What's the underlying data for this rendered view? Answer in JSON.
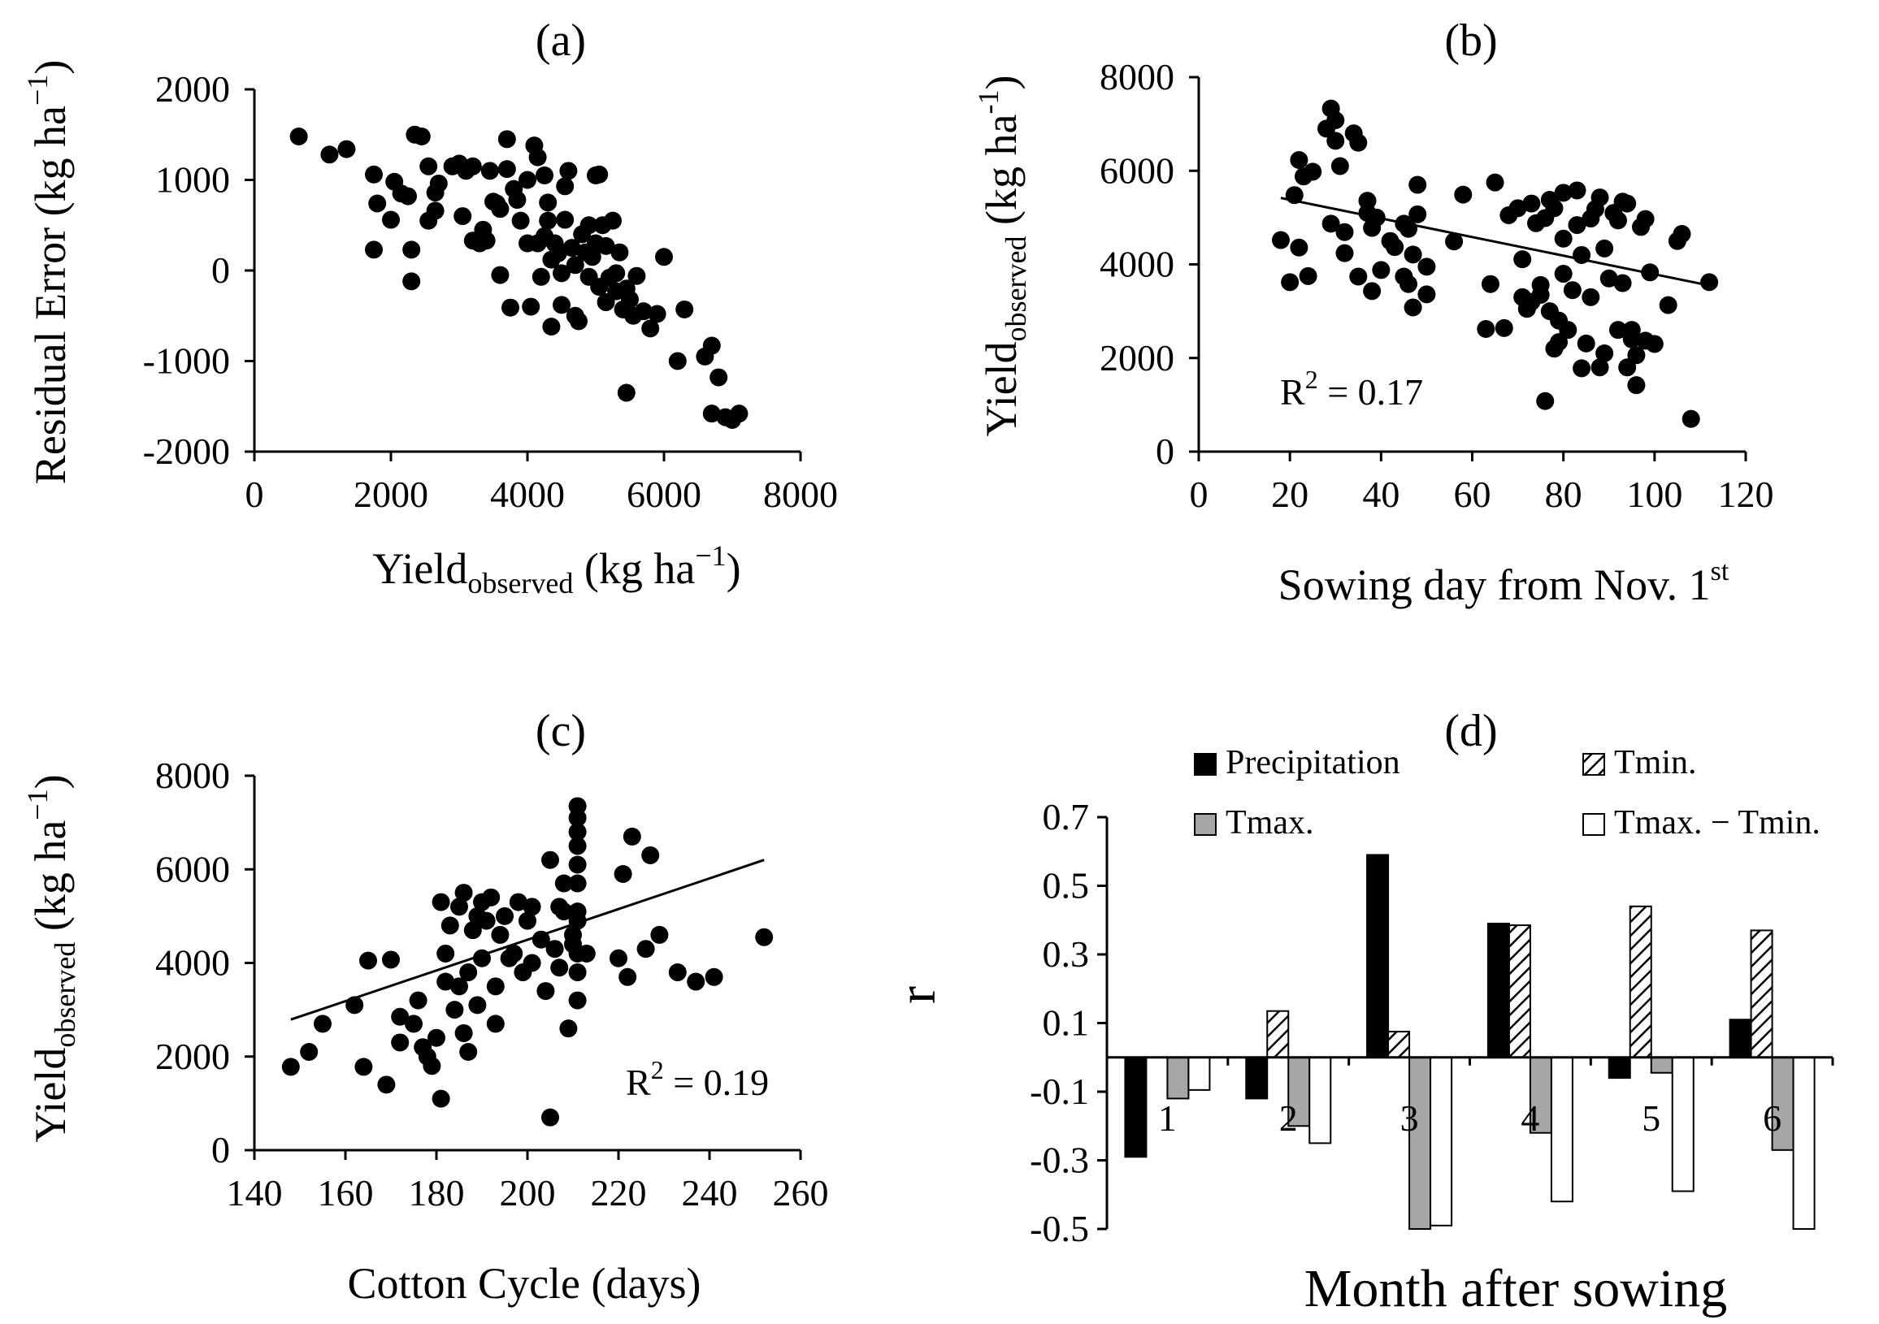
{
  "chart_data": [
    {
      "id": "a",
      "type": "scatter",
      "title": "(a)",
      "xlabel": "Yield",
      "xlabel_sub": "observed",
      "xlabel_unit": " (kg ha",
      "xlabel_sup": "−1",
      "xlabel_close": ")",
      "ylabel": "Residual Error (kg ha",
      "ylabel_sup": "−1",
      "ylabel_close": ")",
      "xlim": [
        0,
        8000
      ],
      "ylim": [
        -2000,
        2000
      ],
      "xticks": [
        0,
        2000,
        4000,
        6000,
        8000
      ],
      "yticks": [
        -2000,
        -1000,
        0,
        1000,
        2000
      ],
      "grid": false,
      "points": [
        [
          650,
          1480
        ],
        [
          1100,
          1280
        ],
        [
          1350,
          1340
        ],
        [
          1750,
          1060
        ],
        [
          1800,
          740
        ],
        [
          1750,
          230
        ],
        [
          2000,
          560
        ],
        [
          2050,
          980
        ],
        [
          2150,
          850
        ],
        [
          2250,
          820
        ],
        [
          2300,
          230
        ],
        [
          2300,
          -120
        ],
        [
          2350,
          1500
        ],
        [
          2450,
          1480
        ],
        [
          2550,
          1150
        ],
        [
          2550,
          550
        ],
        [
          2650,
          660
        ],
        [
          2650,
          860
        ],
        [
          2700,
          960
        ],
        [
          2900,
          1150
        ],
        [
          3000,
          1180
        ],
        [
          3050,
          600
        ],
        [
          3100,
          1100
        ],
        [
          3200,
          1150
        ],
        [
          3200,
          330
        ],
        [
          3300,
          300
        ],
        [
          3350,
          450
        ],
        [
          3400,
          330
        ],
        [
          3450,
          1100
        ],
        [
          3500,
          760
        ],
        [
          3550,
          740
        ],
        [
          3600,
          680
        ],
        [
          3600,
          -50
        ],
        [
          3700,
          1120
        ],
        [
          3700,
          1450
        ],
        [
          3750,
          -410
        ],
        [
          3800,
          900
        ],
        [
          3850,
          780
        ],
        [
          3900,
          550
        ],
        [
          4000,
          300
        ],
        [
          4000,
          1000
        ],
        [
          4050,
          -400
        ],
        [
          4100,
          1380
        ],
        [
          4150,
          1250
        ],
        [
          4150,
          300
        ],
        [
          4200,
          -70
        ],
        [
          4250,
          1050
        ],
        [
          4250,
          380
        ],
        [
          4300,
          750
        ],
        [
          4300,
          550
        ],
        [
          4350,
          120
        ],
        [
          4350,
          -620
        ],
        [
          4400,
          300
        ],
        [
          4450,
          190
        ],
        [
          4500,
          -30
        ],
        [
          4500,
          -380
        ],
        [
          4550,
          560
        ],
        [
          4550,
          930
        ],
        [
          4600,
          1100
        ],
        [
          4650,
          250
        ],
        [
          4700,
          60
        ],
        [
          4700,
          -500
        ],
        [
          4750,
          -560
        ],
        [
          4800,
          400
        ],
        [
          4850,
          200
        ],
        [
          4900,
          500
        ],
        [
          4900,
          -70
        ],
        [
          4950,
          150
        ],
        [
          5000,
          300
        ],
        [
          5000,
          1050
        ],
        [
          5050,
          1060
        ],
        [
          5050,
          -180
        ],
        [
          5100,
          500
        ],
        [
          5150,
          270
        ],
        [
          5150,
          -350
        ],
        [
          5200,
          -80
        ],
        [
          5250,
          550
        ],
        [
          5300,
          -30
        ],
        [
          5300,
          -230
        ],
        [
          5350,
          200
        ],
        [
          5400,
          -430
        ],
        [
          5450,
          -1350
        ],
        [
          5450,
          -200
        ],
        [
          5500,
          -320
        ],
        [
          5550,
          -500
        ],
        [
          5600,
          -60
        ],
        [
          5700,
          -450
        ],
        [
          5800,
          -640
        ],
        [
          5900,
          -480
        ],
        [
          6000,
          150
        ],
        [
          6200,
          -1000
        ],
        [
          6300,
          -430
        ],
        [
          6600,
          -950
        ],
        [
          6700,
          -830
        ],
        [
          6700,
          -1580
        ],
        [
          6800,
          -1180
        ],
        [
          6900,
          -1620
        ],
        [
          7000,
          -1650
        ],
        [
          7100,
          -1580
        ]
      ]
    },
    {
      "id": "b",
      "type": "scatter",
      "title": "(b)",
      "xlabel": "Sowing day from Nov. 1",
      "xlabel_sup": "st",
      "ylabel": "Yield",
      "ylabel_sub": "observed",
      "ylabel_unit": " (kg ha",
      "ylabel_sup": "-1",
      "ylabel_close": ")",
      "xlim": [
        0,
        120
      ],
      "ylim": [
        0,
        8000
      ],
      "xticks": [
        0,
        20,
        40,
        60,
        80,
        100,
        120
      ],
      "yticks": [
        0,
        2000,
        4000,
        6000,
        8000
      ],
      "grid": false,
      "r2_label": "R",
      "r2_sup": "2",
      "r2_value": " = 0.17",
      "trendline": [
        [
          18,
          5420
        ],
        [
          113,
          3530
        ]
      ],
      "points": [
        [
          18,
          4520
        ],
        [
          20,
          3620
        ],
        [
          21,
          5480
        ],
        [
          22,
          6230
        ],
        [
          22,
          4360
        ],
        [
          23,
          5880
        ],
        [
          24,
          3750
        ],
        [
          25,
          5980
        ],
        [
          28,
          6900
        ],
        [
          29,
          7330
        ],
        [
          29,
          4870
        ],
        [
          30,
          6640
        ],
        [
          30,
          7080
        ],
        [
          31,
          6100
        ],
        [
          32,
          4690
        ],
        [
          32,
          4240
        ],
        [
          34,
          6800
        ],
        [
          35,
          6600
        ],
        [
          35,
          3740
        ],
        [
          37,
          5100
        ],
        [
          37,
          5360
        ],
        [
          38,
          4780
        ],
        [
          38,
          3430
        ],
        [
          39,
          5000
        ],
        [
          40,
          3880
        ],
        [
          42,
          4500
        ],
        [
          43,
          4370
        ],
        [
          45,
          3740
        ],
        [
          45,
          4870
        ],
        [
          46,
          4760
        ],
        [
          46,
          3580
        ],
        [
          47,
          3080
        ],
        [
          47,
          4210
        ],
        [
          48,
          5070
        ],
        [
          48,
          5700
        ],
        [
          50,
          3360
        ],
        [
          50,
          3950
        ],
        [
          56,
          4490
        ],
        [
          58,
          5490
        ],
        [
          63,
          2620
        ],
        [
          64,
          3580
        ],
        [
          65,
          5750
        ],
        [
          67,
          2640
        ],
        [
          68,
          5050
        ],
        [
          70,
          5200
        ],
        [
          71,
          3300
        ],
        [
          71,
          4110
        ],
        [
          72,
          3050
        ],
        [
          73,
          5300
        ],
        [
          73,
          3200
        ],
        [
          74,
          4880
        ],
        [
          75,
          3350
        ],
        [
          75,
          3560
        ],
        [
          76,
          1080
        ],
        [
          76,
          4990
        ],
        [
          77,
          3000
        ],
        [
          77,
          5380
        ],
        [
          78,
          2200
        ],
        [
          78,
          5200
        ],
        [
          79,
          2340
        ],
        [
          79,
          2800
        ],
        [
          80,
          3800
        ],
        [
          80,
          4550
        ],
        [
          80,
          5530
        ],
        [
          81,
          2600
        ],
        [
          82,
          3450
        ],
        [
          83,
          4840
        ],
        [
          83,
          5580
        ],
        [
          84,
          4200
        ],
        [
          84,
          1780
        ],
        [
          85,
          2310
        ],
        [
          86,
          4980
        ],
        [
          86,
          3300
        ],
        [
          87,
          5180
        ],
        [
          88,
          1800
        ],
        [
          88,
          5430
        ],
        [
          89,
          4340
        ],
        [
          89,
          2100
        ],
        [
          90,
          3700
        ],
        [
          91,
          5100
        ],
        [
          92,
          2600
        ],
        [
          92,
          4940
        ],
        [
          93,
          3600
        ],
        [
          93,
          5340
        ],
        [
          94,
          1800
        ],
        [
          94,
          5300
        ],
        [
          95,
          2600
        ],
        [
          95,
          2400
        ],
        [
          96,
          2060
        ],
        [
          96,
          1420
        ],
        [
          97,
          4800
        ],
        [
          98,
          2370
        ],
        [
          98,
          4970
        ],
        [
          99,
          3830
        ],
        [
          100,
          2300
        ],
        [
          103,
          3130
        ],
        [
          105,
          4500
        ],
        [
          106,
          4650
        ],
        [
          108,
          700
        ],
        [
          112,
          3620
        ]
      ]
    },
    {
      "id": "c",
      "type": "scatter",
      "title": "(c)",
      "xlabel": "Cotton Cycle  (days)",
      "ylabel": "Yield",
      "ylabel_sub": "observed",
      "ylabel_unit": " (kg ha",
      "ylabel_sup": "−1",
      "ylabel_close": ")",
      "xlim": [
        140,
        260
      ],
      "ylim": [
        0,
        8000
      ],
      "xticks": [
        140,
        160,
        180,
        200,
        220,
        240,
        260
      ],
      "yticks": [
        0,
        2000,
        4000,
        6000,
        8000
      ],
      "grid": false,
      "r2_label": "R",
      "r2_sup": "2",
      "r2_value": " = 0.19",
      "trendline": [
        [
          148,
          2790
        ],
        [
          252,
          6200
        ]
      ],
      "points": [
        [
          148,
          1780
        ],
        [
          152,
          2100
        ],
        [
          155,
          2700
        ],
        [
          162,
          3100
        ],
        [
          164,
          1780
        ],
        [
          165,
          4050
        ],
        [
          169,
          1400
        ],
        [
          170,
          4070
        ],
        [
          172,
          2850
        ],
        [
          172,
          2300
        ],
        [
          175,
          2700
        ],
        [
          176,
          3200
        ],
        [
          177,
          2200
        ],
        [
          178,
          2000
        ],
        [
          179,
          1800
        ],
        [
          180,
          2400
        ],
        [
          181,
          1100
        ],
        [
          181,
          5300
        ],
        [
          182,
          4200
        ],
        [
          182,
          3600
        ],
        [
          183,
          4800
        ],
        [
          184,
          3000
        ],
        [
          185,
          5200
        ],
        [
          185,
          3500
        ],
        [
          186,
          2500
        ],
        [
          186,
          5500
        ],
        [
          187,
          3800
        ],
        [
          187,
          2100
        ],
        [
          188,
          4700
        ],
        [
          189,
          5000
        ],
        [
          189,
          3100
        ],
        [
          190,
          5300
        ],
        [
          190,
          4100
        ],
        [
          191,
          4900
        ],
        [
          192,
          5400
        ],
        [
          193,
          3500
        ],
        [
          193,
          2700
        ],
        [
          194,
          4600
        ],
        [
          195,
          5000
        ],
        [
          196,
          4100
        ],
        [
          197,
          4200
        ],
        [
          198,
          5300
        ],
        [
          199,
          3800
        ],
        [
          200,
          4900
        ],
        [
          201,
          4000
        ],
        [
          201,
          5200
        ],
        [
          203,
          4500
        ],
        [
          204,
          3400
        ],
        [
          205,
          6200
        ],
        [
          205,
          700
        ],
        [
          206,
          4300
        ],
        [
          207,
          5200
        ],
        [
          207,
          3900
        ],
        [
          208,
          5100
        ],
        [
          208,
          5700
        ],
        [
          209,
          2600
        ],
        [
          210,
          4600
        ],
        [
          210,
          4400
        ],
        [
          211,
          4900
        ],
        [
          211,
          5100
        ],
        [
          211,
          5700
        ],
        [
          211,
          6100
        ],
        [
          211,
          6500
        ],
        [
          211,
          6800
        ],
        [
          211,
          7100
        ],
        [
          211,
          7350
        ],
        [
          211,
          3200
        ],
        [
          211,
          3800
        ],
        [
          211,
          4200
        ],
        [
          213,
          4200
        ],
        [
          220,
          4100
        ],
        [
          221,
          5900
        ],
        [
          222,
          3700
        ],
        [
          223,
          6700
        ],
        [
          226,
          4300
        ],
        [
          227,
          6300
        ],
        [
          229,
          4600
        ],
        [
          233,
          3800
        ],
        [
          237,
          3600
        ],
        [
          241,
          3700
        ],
        [
          252,
          4550
        ]
      ]
    },
    {
      "id": "d",
      "type": "bar",
      "title": "(d)",
      "xlabel": "Month after sowing",
      "ylabel": "r",
      "ylim": [
        -0.5,
        0.7
      ],
      "yticks": [
        0.7,
        0.5,
        0.3,
        0.1,
        -0.1,
        -0.3,
        -0.5
      ],
      "ytick_labels": [
        "0.7",
        "0.5",
        "0.3",
        "0.1",
        "-0.1",
        "-0.3",
        "-0.5"
      ],
      "categories": [
        "1",
        "2",
        "3",
        "4",
        "5",
        "6"
      ],
      "grid": false,
      "legend_position": "top",
      "series": [
        {
          "name": "Precipitation",
          "style": "solid-black",
          "values": [
            -0.29,
            -0.12,
            0.59,
            0.39,
            -0.06,
            0.11
          ]
        },
        {
          "name": "Tmin.",
          "style": "hatched",
          "values": [
            0.0,
            0.135,
            0.075,
            0.385,
            0.44,
            0.37
          ]
        },
        {
          "name": "Tmax.",
          "style": "gray",
          "values": [
            -0.12,
            -0.2,
            -0.5,
            -0.22,
            -0.045,
            -0.27
          ]
        },
        {
          "name": "Tmax. − Tmin.",
          "style": "white",
          "values": [
            -0.095,
            -0.25,
            -0.49,
            -0.42,
            -0.39,
            -0.5
          ]
        }
      ],
      "colors": {
        "solid-black": "#000000",
        "gray": "#a6a6a6",
        "white": "#ffffff"
      }
    }
  ]
}
